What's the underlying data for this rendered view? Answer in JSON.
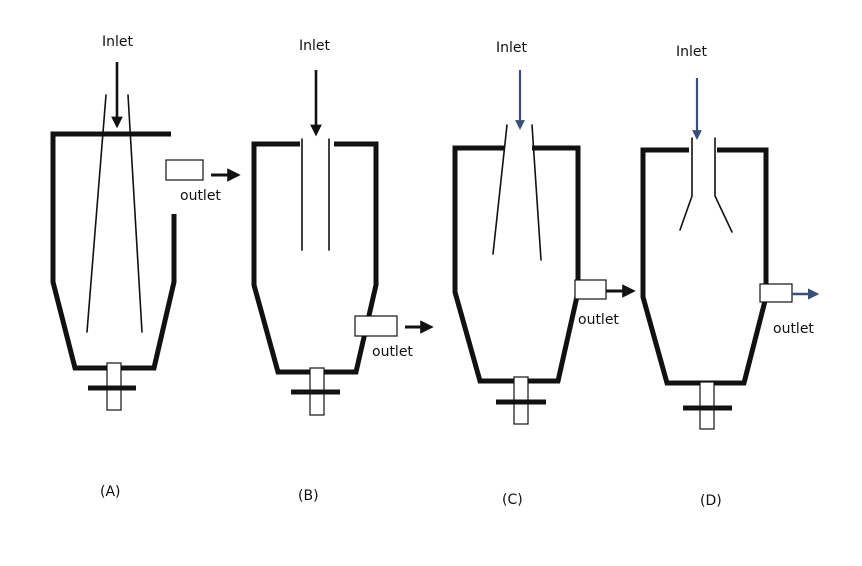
{
  "diagram": {
    "units": [
      {
        "inlet_label": "Inlet",
        "outlet_label": "outlet",
        "caption": "(A)"
      },
      {
        "inlet_label": "Inlet",
        "outlet_label": "outlet",
        "caption": "(B)"
      },
      {
        "inlet_label": "Inlet",
        "outlet_label": "outlet",
        "caption": "(C)"
      },
      {
        "inlet_label": "Inlet",
        "outlet_label": "outlet",
        "caption": "(D)"
      }
    ],
    "colors": {
      "line": "#111111",
      "inlet_arrow_cd": "#3b4e7a",
      "background": "#ffffff"
    }
  }
}
